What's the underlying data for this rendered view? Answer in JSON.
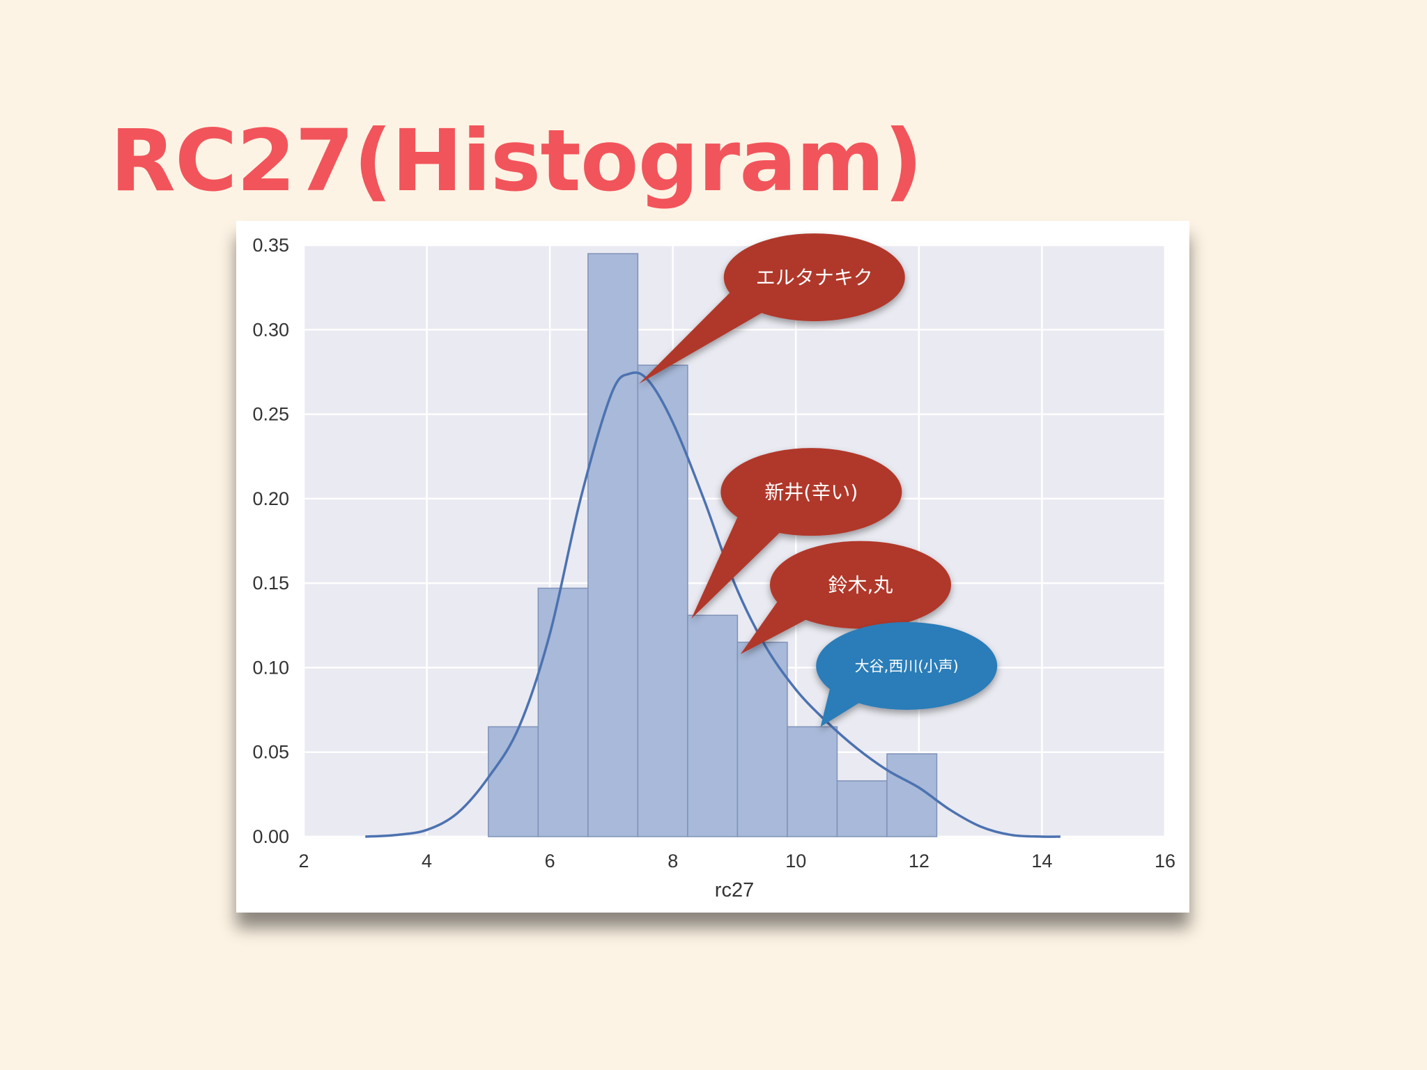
{
  "slide": {
    "title": "RC27(Histogram)",
    "title_color": "#f2545b",
    "background": "#fdf3e4"
  },
  "chart_data": {
    "type": "bar",
    "subtype": "histogram-with-density-curve",
    "xlabel": "rc27",
    "ylabel": "",
    "xlim": [
      2,
      16
    ],
    "ylim": [
      0,
      0.35
    ],
    "x_ticks": [
      "2",
      "4",
      "6",
      "8",
      "10",
      "12",
      "14",
      "16"
    ],
    "y_ticks": [
      "0.00",
      "0.05",
      "0.10",
      "0.15",
      "0.20",
      "0.25",
      "0.30",
      "0.35"
    ],
    "grid": true,
    "plot_background": "#eaeaf2",
    "bar_color": "#a8b9d9",
    "bar_edge_color": "#7f92b8",
    "line_color": "#4c72b0",
    "bins": [
      {
        "x0": 5.0,
        "x1": 5.81,
        "value": 0.065
      },
      {
        "x0": 5.81,
        "x1": 6.62,
        "value": 0.147
      },
      {
        "x0": 6.62,
        "x1": 7.43,
        "value": 0.345
      },
      {
        "x0": 7.43,
        "x1": 8.24,
        "value": 0.279
      },
      {
        "x0": 8.24,
        "x1": 9.05,
        "value": 0.131
      },
      {
        "x0": 9.05,
        "x1": 9.86,
        "value": 0.115
      },
      {
        "x0": 9.86,
        "x1": 10.67,
        "value": 0.065
      },
      {
        "x0": 10.67,
        "x1": 11.48,
        "value": 0.033
      },
      {
        "x0": 11.48,
        "x1": 12.29,
        "value": 0.049
      }
    ],
    "density_curve": [
      {
        "x": 3.0,
        "y": 0.0
      },
      {
        "x": 3.5,
        "y": 0.001
      },
      {
        "x": 4.0,
        "y": 0.004
      },
      {
        "x": 4.5,
        "y": 0.014
      },
      {
        "x": 5.0,
        "y": 0.035
      },
      {
        "x": 5.5,
        "y": 0.065
      },
      {
        "x": 6.0,
        "y": 0.12
      },
      {
        "x": 6.5,
        "y": 0.2
      },
      {
        "x": 7.0,
        "y": 0.262
      },
      {
        "x": 7.3,
        "y": 0.274
      },
      {
        "x": 7.6,
        "y": 0.27
      },
      {
        "x": 8.0,
        "y": 0.245
      },
      {
        "x": 8.5,
        "y": 0.2
      },
      {
        "x": 9.0,
        "y": 0.15
      },
      {
        "x": 9.5,
        "y": 0.113
      },
      {
        "x": 10.0,
        "y": 0.087
      },
      {
        "x": 10.5,
        "y": 0.068
      },
      {
        "x": 11.0,
        "y": 0.052
      },
      {
        "x": 11.5,
        "y": 0.039
      },
      {
        "x": 12.0,
        "y": 0.029
      },
      {
        "x": 12.5,
        "y": 0.016
      },
      {
        "x": 13.0,
        "y": 0.006
      },
      {
        "x": 13.5,
        "y": 0.001
      },
      {
        "x": 14.0,
        "y": 0.0
      },
      {
        "x": 14.3,
        "y": 0.0
      }
    ],
    "annotations": [
      {
        "text": "エルタナキク",
        "color": "#b0392b",
        "center": [
          10.3,
          0.331
        ],
        "target": [
          7.45,
          0.268
        ]
      },
      {
        "text": "新井(辛い)",
        "color": "#b0392b",
        "center": [
          10.25,
          0.204
        ],
        "target": [
          8.3,
          0.129
        ]
      },
      {
        "text": "鈴木,丸",
        "color": "#b0392b",
        "center": [
          11.05,
          0.149
        ],
        "target": [
          9.1,
          0.108
        ]
      },
      {
        "text": "大谷,西川(小声)",
        "color": "#2a7db8",
        "center": [
          11.8,
          0.101
        ],
        "target": [
          10.4,
          0.065
        ]
      }
    ]
  }
}
